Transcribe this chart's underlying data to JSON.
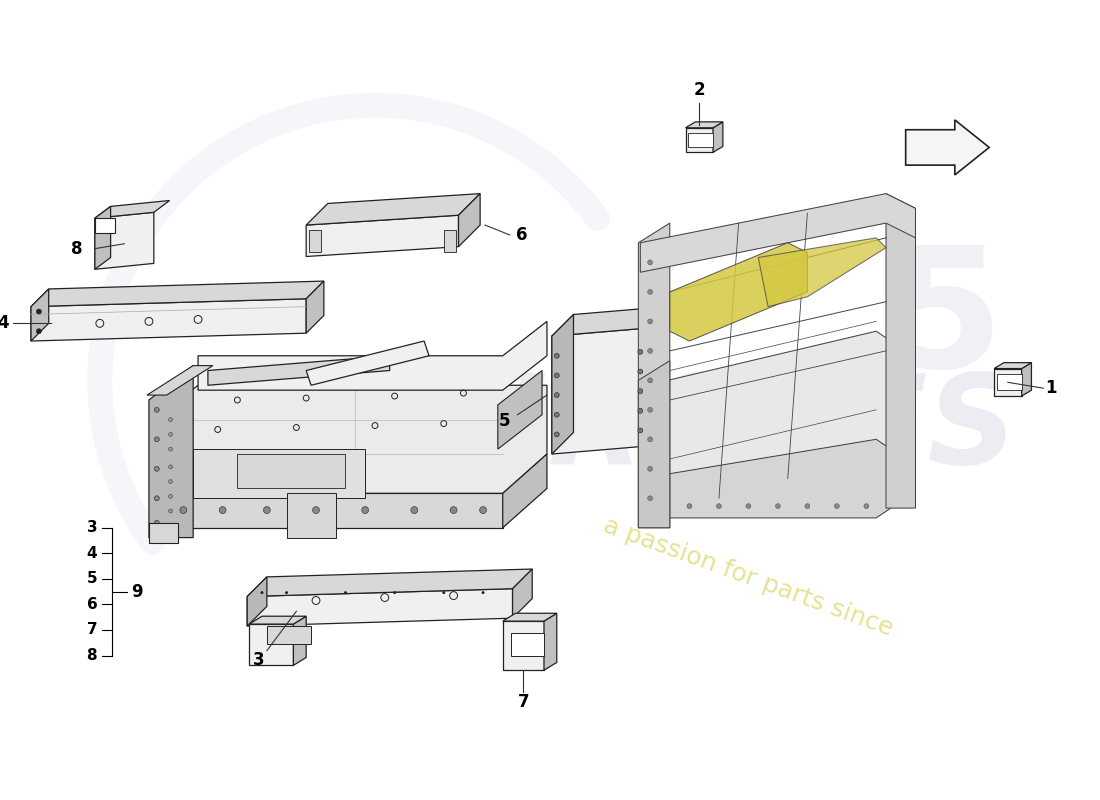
{
  "bg_color": "#ffffff",
  "line_color": "#222222",
  "face_light": "#f0f0f0",
  "face_mid": "#d8d8d8",
  "face_dark": "#c0c0c0",
  "face_side": "#b8b8b8",
  "yellow": "#d4c840",
  "wm_color": "#d8dde8",
  "wm_yellow": "#ddd870"
}
